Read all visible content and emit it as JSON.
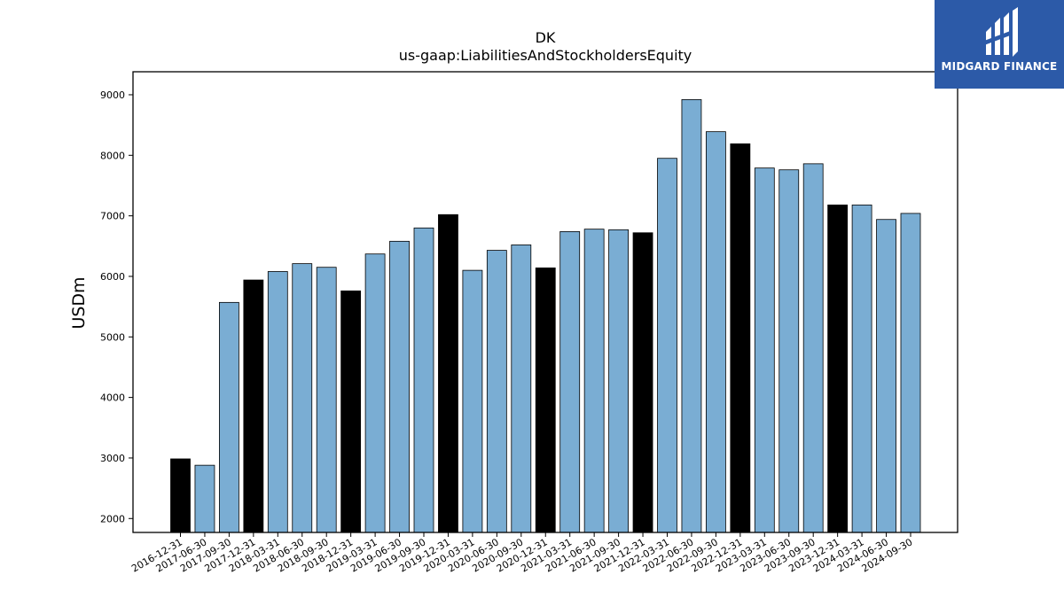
{
  "chart_data": {
    "type": "bar",
    "title": "DK",
    "subtitle": "us-gaap:LiabilitiesAndStockholdersEquity",
    "ylabel": "USDm",
    "xlabel": "",
    "ylim": [
      1770,
      9380
    ],
    "yticks": [
      2000,
      3000,
      4000,
      5000,
      6000,
      7000,
      8000,
      9000
    ],
    "categories": [
      "2016-12-31",
      "2017-06-30",
      "2017-09-30",
      "2017-12-31",
      "2018-03-31",
      "2018-06-30",
      "2018-09-30",
      "2018-12-31",
      "2019-03-31",
      "2019-06-30",
      "2019-09-30",
      "2019-12-31",
      "2020-03-31",
      "2020-06-30",
      "2020-09-30",
      "2020-12-31",
      "2021-03-31",
      "2021-06-30",
      "2021-09-30",
      "2021-12-31",
      "2022-03-31",
      "2022-06-30",
      "2022-09-30",
      "2022-12-31",
      "2023-03-31",
      "2023-06-30",
      "2023-09-30",
      "2023-12-31",
      "2024-03-31",
      "2024-06-30",
      "2024-09-30"
    ],
    "values": [
      2985,
      2880,
      5570,
      5940,
      6080,
      6210,
      6150,
      5760,
      6370,
      6580,
      6800,
      7020,
      6100,
      6430,
      6520,
      6140,
      6740,
      6780,
      6770,
      6720,
      7950,
      8920,
      8390,
      8190,
      7790,
      7760,
      7860,
      7180,
      7180,
      6940,
      7040
    ],
    "annual": [
      true,
      false,
      false,
      true,
      false,
      false,
      false,
      true,
      false,
      false,
      false,
      true,
      false,
      false,
      false,
      true,
      false,
      false,
      false,
      true,
      false,
      false,
      false,
      true,
      false,
      false,
      false,
      true,
      false,
      false,
      false
    ],
    "colors": {
      "quarterly": "#7aadd3",
      "annual": "#000000",
      "edge": "#000000"
    },
    "grid": false
  },
  "logo": {
    "text": "MIDGARD FINANCE",
    "background": "#2c5aa8"
  }
}
